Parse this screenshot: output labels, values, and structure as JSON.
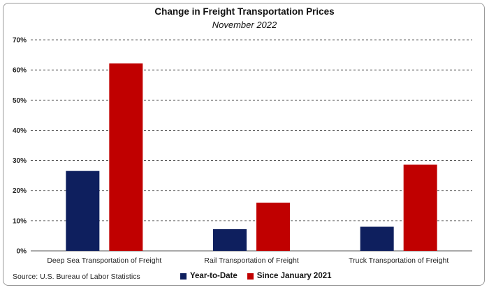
{
  "chart_data": {
    "type": "bar",
    "title": "Change in Freight Transportation Prices",
    "subtitle": "November 2022",
    "categories": [
      "Deep Sea Transportation of Freight",
      "Rail Transportation of Freight",
      "Truck Transportation of Freight"
    ],
    "series": [
      {
        "name": "Year-to-Date",
        "color": "#0e1f5e",
        "values": [
          26.5,
          7.2,
          8.0
        ]
      },
      {
        "name": "Since January 2021",
        "color": "#c00000",
        "values": [
          62.2,
          16.0,
          28.6
        ]
      }
    ],
    "ylim": [
      0,
      70
    ],
    "yticks": [
      "0%",
      "10%",
      "20%",
      "30%",
      "40%",
      "50%",
      "60%",
      "70%"
    ],
    "grid": true,
    "legend": "bottom"
  },
  "source": "Source: U.S. Bureau of Labor Statistics"
}
